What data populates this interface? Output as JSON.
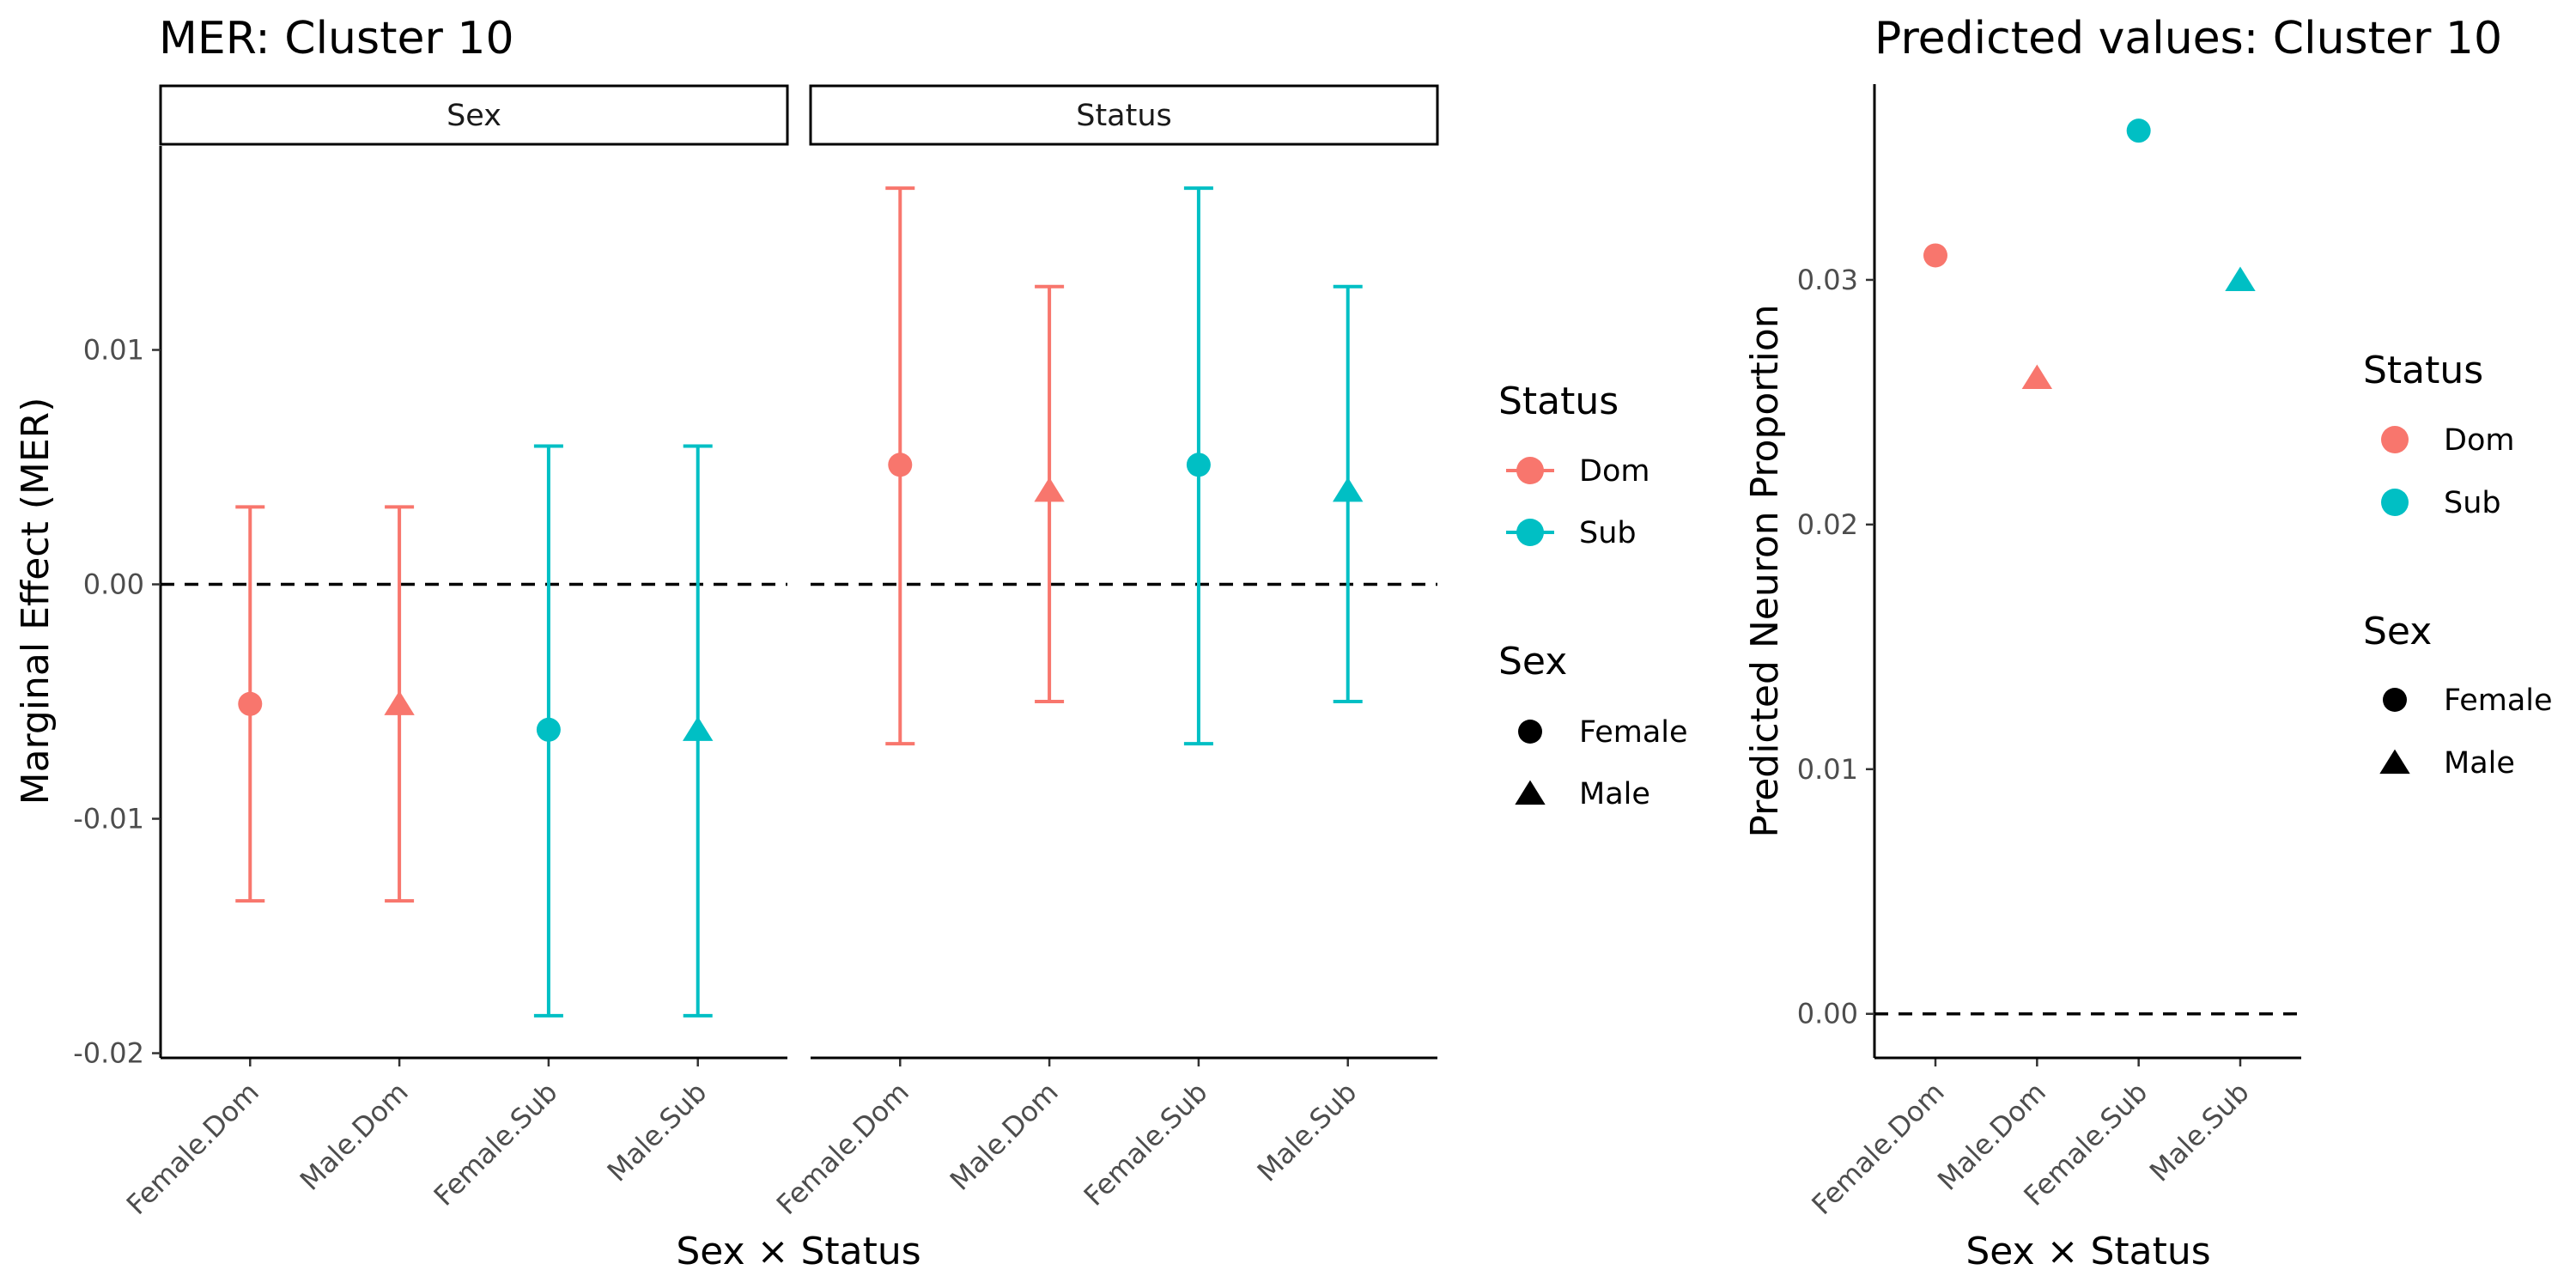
{
  "colors": {
    "Dom": "#F8766D",
    "Sub": "#00BFC4",
    "key": "#000000"
  },
  "chart_data": [
    {
      "type": "scatter",
      "title": "MER: Cluster 10",
      "xlabel": "Sex × Status",
      "ylabel": "Marginal Effect (MER)",
      "ylim": [
        -0.0202,
        0.0187
      ],
      "yticks": [
        {
          "v": 0.01,
          "label": "0.01"
        },
        {
          "v": 0.0,
          "label": "0.00"
        },
        {
          "v": -0.01,
          "label": "-0.01"
        },
        {
          "v": -0.02,
          "label": "-0.02"
        }
      ],
      "categories": [
        "Female.Dom",
        "Male.Dom",
        "Female.Sub",
        "Male.Sub"
      ],
      "reference_line": 0,
      "grid": false,
      "facets": [
        {
          "label": "Sex",
          "points": [
            {
              "x": "Female.Dom",
              "y": -0.0051,
              "lo": -0.0135,
              "hi": 0.0033,
              "status": "Dom",
              "sex": "Female"
            },
            {
              "x": "Male.Dom",
              "y": -0.0051,
              "lo": -0.0135,
              "hi": 0.0033,
              "status": "Dom",
              "sex": "Male"
            },
            {
              "x": "Female.Sub",
              "y": -0.0062,
              "lo": -0.0184,
              "hi": 0.0059,
              "status": "Sub",
              "sex": "Female"
            },
            {
              "x": "Male.Sub",
              "y": -0.0062,
              "lo": -0.0184,
              "hi": 0.0059,
              "status": "Sub",
              "sex": "Male"
            }
          ]
        },
        {
          "label": "Status",
          "points": [
            {
              "x": "Female.Dom",
              "y": 0.0051,
              "lo": -0.0068,
              "hi": 0.0169,
              "status": "Dom",
              "sex": "Female"
            },
            {
              "x": "Male.Dom",
              "y": 0.004,
              "lo": -0.005,
              "hi": 0.0127,
              "status": "Dom",
              "sex": "Male"
            },
            {
              "x": "Female.Sub",
              "y": 0.0051,
              "lo": -0.0068,
              "hi": 0.0169,
              "status": "Sub",
              "sex": "Female"
            },
            {
              "x": "Male.Sub",
              "y": 0.004,
              "lo": -0.005,
              "hi": 0.0127,
              "status": "Sub",
              "sex": "Male"
            }
          ]
        }
      ],
      "legend": {
        "position": "right",
        "status_title": "Status",
        "status_items": [
          "Dom",
          "Sub"
        ],
        "sex_title": "Sex",
        "sex_items": [
          "Female",
          "Male"
        ]
      }
    },
    {
      "type": "scatter",
      "title": "Predicted values: Cluster 10",
      "xlabel": "Sex × Status",
      "ylabel": "Predicted Neuron Proportion",
      "ylim": [
        -0.0018,
        0.038
      ],
      "yticks": [
        {
          "v": 0.0,
          "label": "0.00"
        },
        {
          "v": 0.01,
          "label": "0.01"
        },
        {
          "v": 0.02,
          "label": "0.02"
        },
        {
          "v": 0.03,
          "label": "0.03"
        }
      ],
      "categories": [
        "Female.Dom",
        "Male.Dom",
        "Female.Sub",
        "Male.Sub"
      ],
      "reference_line": 0,
      "grid": false,
      "points": [
        {
          "x": "Female.Dom",
          "y": 0.031,
          "status": "Dom",
          "sex": "Female"
        },
        {
          "x": "Male.Dom",
          "y": 0.026,
          "status": "Dom",
          "sex": "Male"
        },
        {
          "x": "Female.Sub",
          "y": 0.0361,
          "status": "Sub",
          "sex": "Female"
        },
        {
          "x": "Male.Sub",
          "y": 0.03,
          "status": "Sub",
          "sex": "Male"
        }
      ],
      "legend": {
        "position": "right",
        "status_title": "Status",
        "status_items": [
          "Dom",
          "Sub"
        ],
        "sex_title": "Sex",
        "sex_items": [
          "Female",
          "Male"
        ]
      }
    }
  ]
}
